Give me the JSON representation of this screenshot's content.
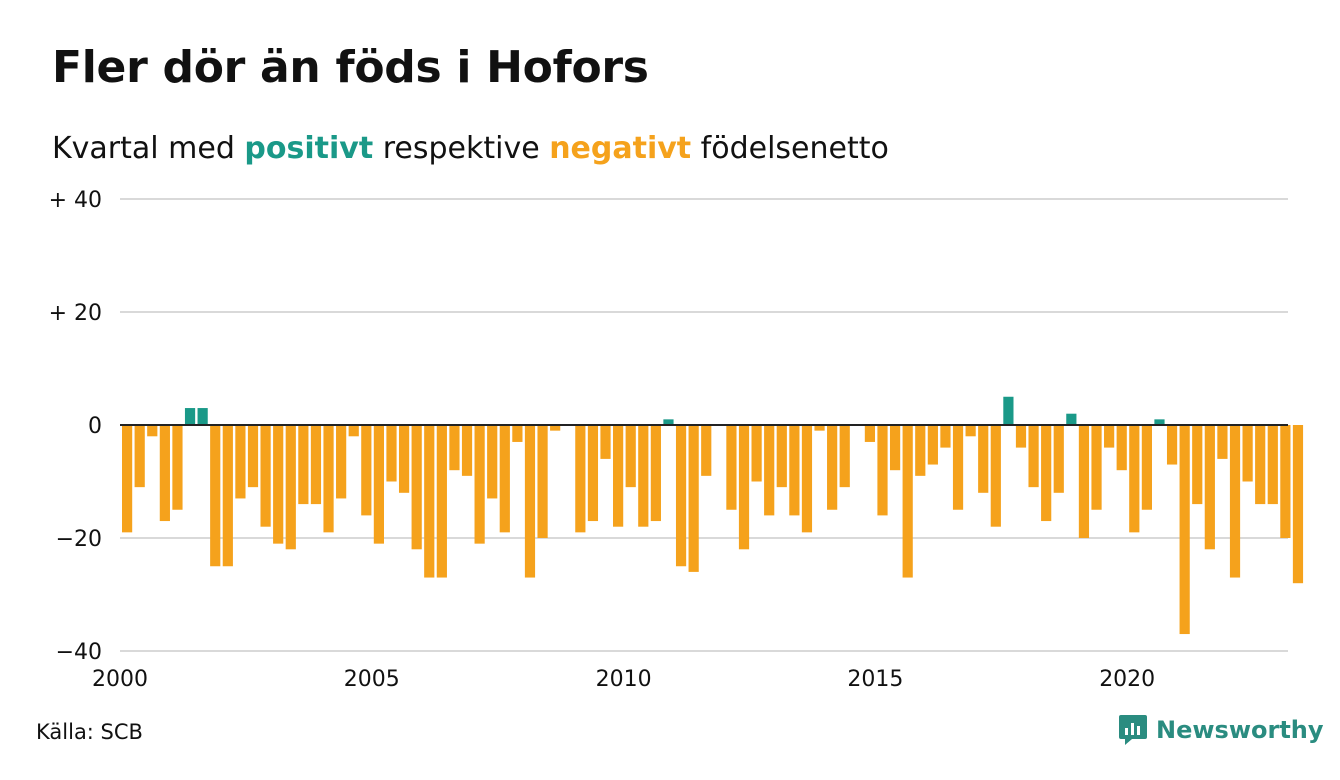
{
  "title": "Fler dör än föds i Hofors",
  "subtitle": {
    "prefix": "Kvartal med ",
    "positive": "positivt",
    "middle": " respektive ",
    "negative": "negativt",
    "suffix": " födelsenetto"
  },
  "source": "Källa: SCB",
  "brand": "Newsworthy",
  "colors": {
    "positive": "#1a9988",
    "negative": "#f5a21c",
    "grid": "#d9d9d9",
    "zero": "#222222",
    "text": "#111111",
    "brand": "#2a8c80"
  },
  "icons": {
    "brand": "newsworthy-chat-chart-icon"
  },
  "chart_data": {
    "type": "bar",
    "x_start": "2000 Q1",
    "ylim": [
      -40,
      40
    ],
    "yticks": [
      40,
      20,
      0,
      -20,
      -40
    ],
    "ytick_labels": [
      "+ 40",
      "+ 20",
      "0",
      "−20",
      "−40"
    ],
    "xtick_labels": [
      "2000",
      "2005",
      "2010",
      "2015",
      "2020"
    ],
    "grid": true,
    "values": [
      -19,
      -11,
      -2,
      -17,
      -15,
      3,
      3,
      -25,
      -25,
      -13,
      -11,
      -18,
      -21,
      -22,
      -14,
      -14,
      -19,
      -13,
      -2,
      -16,
      -21,
      -10,
      -12,
      -22,
      -27,
      -27,
      -8,
      -9,
      -21,
      -13,
      -19,
      -3,
      -27,
      -20,
      -1,
      0,
      -19,
      -17,
      -6,
      -18,
      -11,
      -18,
      -17,
      1,
      -25,
      -26,
      -9,
      0,
      -15,
      -22,
      -10,
      -16,
      -11,
      -16,
      -19,
      -1,
      -15,
      -11,
      0,
      -3,
      -16,
      -8,
      -27,
      -9,
      -7,
      -4,
      -15,
      -2,
      -12,
      -18,
      5,
      -4,
      -11,
      -17,
      -12,
      2,
      -20,
      -15,
      -4,
      -8,
      -19,
      -15,
      1,
      -7,
      -37,
      -14,
      -22,
      -6,
      -27,
      -10,
      -14,
      -14,
      -20,
      -28
    ]
  }
}
